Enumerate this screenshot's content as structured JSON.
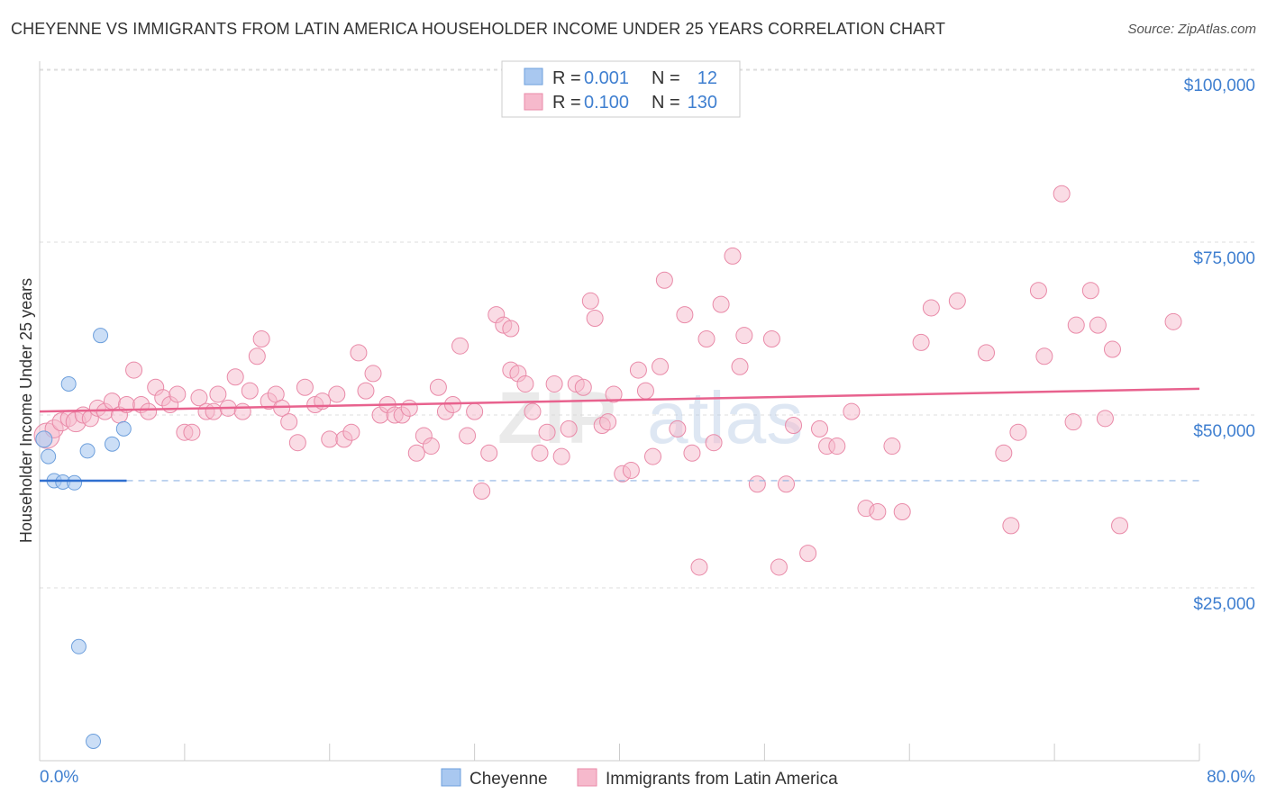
{
  "title": "CHEYENNE VS IMMIGRANTS FROM LATIN AMERICA HOUSEHOLDER INCOME UNDER 25 YEARS CORRELATION CHART",
  "source": "Source: ZipAtlas.com",
  "watermark": {
    "zip": "ZIP",
    "atlas": "atlas"
  },
  "legend_top": {
    "rows": [
      {
        "r_label": "R =",
        "r_value": "0.001",
        "n_label": "N =",
        "n_value": "12"
      },
      {
        "r_label": "R =",
        "r_value": "0.100",
        "n_label": "N =",
        "n_value": "130"
      }
    ]
  },
  "legend_bottom": [
    "Cheyenne",
    "Immigrants from Latin America"
  ],
  "colors": {
    "cheyenne_fill": "#a9c8f0",
    "cheyenne_stroke": "#6d9fdc",
    "cheyenne_line": "#2f6fcf",
    "latin_fill": "#f6b9cc",
    "latin_stroke": "#e98aa8",
    "latin_line": "#e8628e",
    "axis_text": "#3f7fd0",
    "grid": "#dddddd"
  },
  "chart_data": {
    "type": "scatter",
    "title": "CHEYENNE VS IMMIGRANTS FROM LATIN AMERICA HOUSEHOLDER INCOME UNDER 25 YEARS CORRELATION CHART",
    "xlabel": "",
    "ylabel": "Householder Income Under 25 years",
    "xlim": [
      0,
      80
    ],
    "ylim": [
      0,
      105000
    ],
    "x_tick_labels": [
      "0.0%",
      "80.0%"
    ],
    "y_ticks": [
      25000,
      50000,
      75000,
      100000
    ],
    "y_tick_labels": [
      "$25,000",
      "$50,000",
      "$75,000",
      "$100,000"
    ],
    "grid": true,
    "series": [
      {
        "name": "Cheyenne",
        "r": 0.001,
        "n": 12,
        "trend": {
          "x": [
            0,
            6
          ],
          "y": [
            40500,
            40500
          ],
          "dashed_extension_to": 80
        },
        "points": [
          [
            0.3,
            46500,
            9
          ],
          [
            0.6,
            44000,
            8
          ],
          [
            2.0,
            54500,
            8
          ],
          [
            1.0,
            40500,
            8
          ],
          [
            1.6,
            40300,
            8
          ],
          [
            2.4,
            40200,
            8
          ],
          [
            3.3,
            44800,
            8
          ],
          [
            5.0,
            45800,
            8
          ],
          [
            5.8,
            48000,
            8
          ],
          [
            4.2,
            61500,
            8
          ],
          [
            2.7,
            16500,
            8
          ],
          [
            3.7,
            2800,
            8
          ]
        ]
      },
      {
        "name": "Immigrants from Latin America",
        "r": 0.1,
        "n": 130,
        "trend": {
          "x": [
            0,
            80
          ],
          "y": [
            50500,
            53800
          ]
        },
        "points": [
          [
            0.5,
            47000,
            14
          ],
          [
            1.0,
            48000,
            10
          ],
          [
            1.5,
            49000,
            10
          ],
          [
            2.0,
            49500,
            9
          ],
          [
            2.5,
            49000,
            11
          ],
          [
            3.0,
            50000,
            9
          ],
          [
            3.5,
            49500,
            9
          ],
          [
            4.0,
            51000,
            9
          ],
          [
            4.5,
            50500,
            9
          ],
          [
            5.0,
            52000,
            9
          ],
          [
            5.5,
            50000,
            9
          ],
          [
            6.0,
            51500,
            9
          ],
          [
            6.5,
            56500,
            9
          ],
          [
            7.0,
            51500,
            9
          ],
          [
            7.5,
            50500,
            9
          ],
          [
            8.0,
            54000,
            9
          ],
          [
            8.5,
            52500,
            9
          ],
          [
            9.0,
            51500,
            9
          ],
          [
            9.5,
            53000,
            9
          ],
          [
            10.0,
            47500,
            9
          ],
          [
            10.5,
            47500,
            9
          ],
          [
            11.0,
            52500,
            9
          ],
          [
            11.5,
            50500,
            9
          ],
          [
            12.0,
            50500,
            9
          ],
          [
            12.3,
            53000,
            9
          ],
          [
            13.0,
            51000,
            9
          ],
          [
            13.5,
            55500,
            9
          ],
          [
            14.0,
            50500,
            9
          ],
          [
            14.5,
            53500,
            9
          ],
          [
            15.0,
            58500,
            9
          ],
          [
            15.3,
            61000,
            9
          ],
          [
            15.8,
            52000,
            9
          ],
          [
            16.3,
            53000,
            9
          ],
          [
            16.7,
            51000,
            9
          ],
          [
            17.2,
            49000,
            9
          ],
          [
            17.8,
            46000,
            9
          ],
          [
            18.3,
            54000,
            9
          ],
          [
            19.0,
            51500,
            9
          ],
          [
            19.5,
            52000,
            9
          ],
          [
            20.0,
            46500,
            9
          ],
          [
            20.5,
            53000,
            9
          ],
          [
            21.0,
            46500,
            9
          ],
          [
            21.5,
            47500,
            9
          ],
          [
            22.0,
            59000,
            9
          ],
          [
            22.5,
            53500,
            9
          ],
          [
            23.0,
            56000,
            9
          ],
          [
            23.5,
            50000,
            9
          ],
          [
            24.0,
            51500,
            9
          ],
          [
            24.5,
            50000,
            9
          ],
          [
            25.0,
            50000,
            9
          ],
          [
            25.5,
            51000,
            9
          ],
          [
            26.0,
            44500,
            9
          ],
          [
            26.5,
            47000,
            9
          ],
          [
            27.0,
            45500,
            9
          ],
          [
            27.5,
            54000,
            9
          ],
          [
            28.0,
            50500,
            9
          ],
          [
            28.5,
            51500,
            9
          ],
          [
            29.0,
            60000,
            9
          ],
          [
            29.5,
            47000,
            9
          ],
          [
            30.0,
            50500,
            9
          ],
          [
            30.5,
            39000,
            9
          ],
          [
            31.0,
            44500,
            9
          ],
          [
            31.5,
            64500,
            9
          ],
          [
            32.0,
            63000,
            9
          ],
          [
            32.5,
            62500,
            9
          ],
          [
            32.5,
            56500,
            9
          ],
          [
            33.0,
            56000,
            9
          ],
          [
            33.5,
            54500,
            9
          ],
          [
            34.0,
            50500,
            9
          ],
          [
            34.5,
            44500,
            9
          ],
          [
            35.0,
            47500,
            9
          ],
          [
            35.5,
            54500,
            9
          ],
          [
            36.0,
            44000,
            9
          ],
          [
            36.5,
            48000,
            9
          ],
          [
            37.0,
            54500,
            9
          ],
          [
            37.5,
            54000,
            9
          ],
          [
            38.0,
            66500,
            9
          ],
          [
            38.3,
            64000,
            9
          ],
          [
            38.8,
            48500,
            9
          ],
          [
            39.2,
            49000,
            9
          ],
          [
            39.6,
            53000,
            9
          ],
          [
            40.2,
            41500,
            9
          ],
          [
            40.8,
            42000,
            9
          ],
          [
            41.3,
            56500,
            9
          ],
          [
            41.8,
            53500,
            9
          ],
          [
            42.3,
            44000,
            9
          ],
          [
            42.8,
            57000,
            9
          ],
          [
            43.1,
            69500,
            9
          ],
          [
            44.0,
            48000,
            9
          ],
          [
            44.5,
            64500,
            9
          ],
          [
            45.0,
            44500,
            9
          ],
          [
            45.5,
            28000,
            9
          ],
          [
            46.0,
            61000,
            9
          ],
          [
            46.5,
            46000,
            9
          ],
          [
            47.0,
            66000,
            9
          ],
          [
            47.8,
            73000,
            9
          ],
          [
            48.3,
            57000,
            9
          ],
          [
            48.6,
            61500,
            9
          ],
          [
            49.5,
            40000,
            9
          ],
          [
            50.5,
            61000,
            9
          ],
          [
            51.0,
            28000,
            9
          ],
          [
            51.5,
            40000,
            9
          ],
          [
            52.0,
            48500,
            9
          ],
          [
            53.0,
            30000,
            9
          ],
          [
            53.8,
            48000,
            9
          ],
          [
            54.3,
            45500,
            9
          ],
          [
            55.0,
            45500,
            9
          ],
          [
            56.0,
            50500,
            9
          ],
          [
            57.0,
            36500,
            9
          ],
          [
            57.8,
            36000,
            9
          ],
          [
            58.8,
            45500,
            9
          ],
          [
            59.5,
            36000,
            9
          ],
          [
            60.8,
            60500,
            9
          ],
          [
            61.5,
            65500,
            9
          ],
          [
            63.3,
            66500,
            9
          ],
          [
            65.3,
            59000,
            9
          ],
          [
            66.5,
            44500,
            9
          ],
          [
            67.0,
            34000,
            9
          ],
          [
            67.5,
            47500,
            9
          ],
          [
            68.9,
            68000,
            9
          ],
          [
            69.3,
            58500,
            9
          ],
          [
            70.5,
            82000,
            9
          ],
          [
            71.3,
            49000,
            9
          ],
          [
            71.5,
            63000,
            9
          ],
          [
            72.5,
            68000,
            9
          ],
          [
            73.0,
            63000,
            9
          ],
          [
            73.5,
            49500,
            9
          ],
          [
            74.0,
            59500,
            9
          ],
          [
            74.5,
            34000,
            9
          ],
          [
            78.2,
            63500,
            9
          ]
        ]
      }
    ]
  }
}
